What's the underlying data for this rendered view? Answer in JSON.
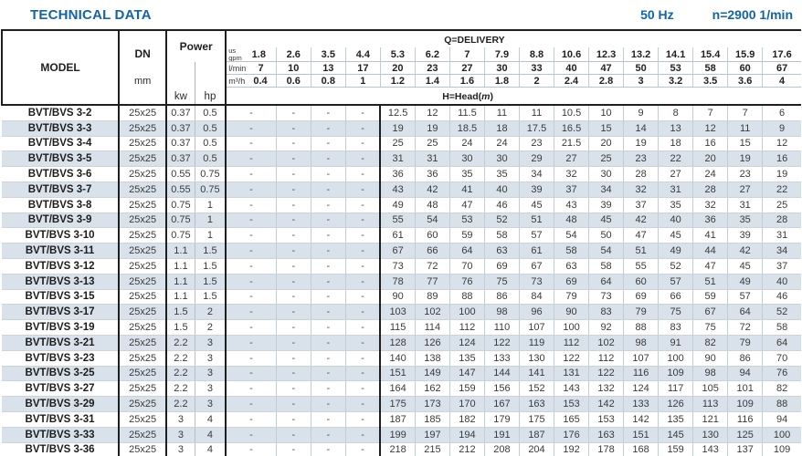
{
  "header": {
    "title": "TECHNICAL DATA",
    "frequency": "50 Hz",
    "speed": "n=2900 1/min"
  },
  "table": {
    "model_header": "MODEL",
    "dn_header": "DN",
    "dn_unit": "mm",
    "power_header": "Power",
    "power_units": [
      "kw",
      "hp"
    ],
    "delivery_header": "Q=DELIVERY",
    "head_label": {
      "prefix": "H=Head(",
      "symbol": "m",
      "suffix": ")"
    },
    "units": {
      "us": "us",
      "gpm": "gpm",
      "lmin": "l/min",
      "m3h": "m³/h"
    },
    "flow": {
      "gpm": [
        "1.8",
        "2.6",
        "3.5",
        "4.4",
        "5.3",
        "6.2",
        "7",
        "7.9",
        "8.8",
        "10.6",
        "12.3",
        "13.2",
        "14.1",
        "15.4",
        "15.9",
        "17.6"
      ],
      "lmin": [
        "7",
        "10",
        "13",
        "17",
        "20",
        "23",
        "27",
        "30",
        "33",
        "40",
        "47",
        "50",
        "53",
        "58",
        "60",
        "67"
      ],
      "m3h": [
        "0.4",
        "0.6",
        "0.8",
        "1",
        "1.2",
        "1.4",
        "1.6",
        "1.8",
        "2",
        "2.4",
        "2.8",
        "3",
        "3.2",
        "3.5",
        "3.6",
        "4"
      ]
    },
    "rows": [
      {
        "model": "BVT/BVS 3-2",
        "dn": "25x25",
        "kw": "0.37",
        "hp": "0.5",
        "heads": [
          "-",
          "-",
          "-",
          "-",
          "12.5",
          "12",
          "11.5",
          "11",
          "11",
          "10.5",
          "10",
          "9",
          "8",
          "7",
          "7",
          "6"
        ]
      },
      {
        "model": "BVT/BVS 3-3",
        "dn": "25x25",
        "kw": "0.37",
        "hp": "0.5",
        "heads": [
          "-",
          "-",
          "-",
          "-",
          "19",
          "19",
          "18.5",
          "18",
          "17.5",
          "16.5",
          "15",
          "14",
          "13",
          "12",
          "11",
          "9"
        ]
      },
      {
        "model": "BVT/BVS 3-4",
        "dn": "25x25",
        "kw": "0.37",
        "hp": "0.5",
        "heads": [
          "-",
          "-",
          "-",
          "-",
          "25",
          "25",
          "24",
          "24",
          "23",
          "21.5",
          "20",
          "19",
          "18",
          "16",
          "15",
          "12"
        ]
      },
      {
        "model": "BVT/BVS 3-5",
        "dn": "25x25",
        "kw": "0.37",
        "hp": "0.5",
        "heads": [
          "-",
          "-",
          "-",
          "-",
          "31",
          "31",
          "30",
          "30",
          "29",
          "27",
          "25",
          "23",
          "22",
          "20",
          "19",
          "16"
        ]
      },
      {
        "model": "BVT/BVS 3-6",
        "dn": "25x25",
        "kw": "0.55",
        "hp": "0.75",
        "heads": [
          "-",
          "-",
          "-",
          "-",
          "36",
          "36",
          "35",
          "35",
          "34",
          "32",
          "30",
          "28",
          "27",
          "24",
          "23",
          "19"
        ]
      },
      {
        "model": "BVT/BVS 3-7",
        "dn": "25x25",
        "kw": "0.55",
        "hp": "0.75",
        "heads": [
          "-",
          "-",
          "-",
          "-",
          "43",
          "42",
          "41",
          "40",
          "39",
          "37",
          "34",
          "32",
          "31",
          "28",
          "27",
          "22"
        ]
      },
      {
        "model": "BVT/BVS 3-8",
        "dn": "25x25",
        "kw": "0.75",
        "hp": "1",
        "heads": [
          "-",
          "-",
          "-",
          "-",
          "49",
          "48",
          "47",
          "46",
          "45",
          "43",
          "39",
          "37",
          "35",
          "32",
          "31",
          "25"
        ]
      },
      {
        "model": "BVT/BVS 3-9",
        "dn": "25x25",
        "kw": "0.75",
        "hp": "1",
        "heads": [
          "-",
          "-",
          "-",
          "-",
          "55",
          "54",
          "53",
          "52",
          "51",
          "48",
          "45",
          "42",
          "40",
          "36",
          "35",
          "28"
        ]
      },
      {
        "model": "BVT/BVS 3-10",
        "dn": "25x25",
        "kw": "0.75",
        "hp": "1",
        "heads": [
          "-",
          "-",
          "-",
          "-",
          "61",
          "60",
          "59",
          "58",
          "57",
          "54",
          "50",
          "47",
          "45",
          "41",
          "39",
          "31"
        ]
      },
      {
        "model": "BVT/BVS 3-11",
        "dn": "25x25",
        "kw": "1.1",
        "hp": "1.5",
        "heads": [
          "-",
          "-",
          "-",
          "-",
          "67",
          "66",
          "64",
          "63",
          "61",
          "58",
          "54",
          "51",
          "49",
          "44",
          "42",
          "34"
        ]
      },
      {
        "model": "BVT/BVS 3-12",
        "dn": "25x25",
        "kw": "1.1",
        "hp": "1.5",
        "heads": [
          "-",
          "-",
          "-",
          "-",
          "73",
          "72",
          "70",
          "69",
          "67",
          "63",
          "58",
          "55",
          "52",
          "47",
          "45",
          "37"
        ]
      },
      {
        "model": "BVT/BVS 3-13",
        "dn": "25x25",
        "kw": "1.1",
        "hp": "1.5",
        "heads": [
          "-",
          "-",
          "-",
          "-",
          "78",
          "77",
          "76",
          "75",
          "73",
          "69",
          "64",
          "60",
          "57",
          "51",
          "49",
          "40"
        ]
      },
      {
        "model": "BVT/BVS 3-15",
        "dn": "25x25",
        "kw": "1.1",
        "hp": "1.5",
        "heads": [
          "-",
          "-",
          "-",
          "-",
          "90",
          "89",
          "88",
          "86",
          "84",
          "79",
          "73",
          "69",
          "66",
          "59",
          "57",
          "46"
        ]
      },
      {
        "model": "BVT/BVS 3-17",
        "dn": "25x25",
        "kw": "1.5",
        "hp": "2",
        "heads": [
          "-",
          "-",
          "-",
          "-",
          "103",
          "102",
          "100",
          "98",
          "96",
          "90",
          "83",
          "79",
          "75",
          "67",
          "64",
          "52"
        ]
      },
      {
        "model": "BVT/BVS 3-19",
        "dn": "25x25",
        "kw": "1.5",
        "hp": "2",
        "heads": [
          "-",
          "-",
          "-",
          "-",
          "115",
          "114",
          "112",
          "110",
          "107",
          "100",
          "92",
          "88",
          "83",
          "75",
          "72",
          "58"
        ]
      },
      {
        "model": "BVT/BVS 3-21",
        "dn": "25x25",
        "kw": "2.2",
        "hp": "3",
        "heads": [
          "-",
          "-",
          "-",
          "-",
          "128",
          "126",
          "124",
          "122",
          "119",
          "112",
          "102",
          "98",
          "91",
          "82",
          "79",
          "64"
        ]
      },
      {
        "model": "BVT/BVS 3-23",
        "dn": "25x25",
        "kw": "2.2",
        "hp": "3",
        "heads": [
          "-",
          "-",
          "-",
          "-",
          "140",
          "138",
          "135",
          "133",
          "130",
          "122",
          "112",
          "107",
          "100",
          "90",
          "86",
          "70"
        ]
      },
      {
        "model": "BVT/BVS 3-25",
        "dn": "25x25",
        "kw": "2.2",
        "hp": "3",
        "heads": [
          "-",
          "-",
          "-",
          "-",
          "151",
          "149",
          "147",
          "144",
          "141",
          "131",
          "122",
          "116",
          "109",
          "98",
          "94",
          "76"
        ]
      },
      {
        "model": "BVT/BVS 3-27",
        "dn": "25x25",
        "kw": "2.2",
        "hp": "3",
        "heads": [
          "-",
          "-",
          "-",
          "-",
          "164",
          "162",
          "159",
          "156",
          "152",
          "143",
          "132",
          "124",
          "117",
          "105",
          "101",
          "82"
        ]
      },
      {
        "model": "BVT/BVS 3-29",
        "dn": "25x25",
        "kw": "2.2",
        "hp": "3",
        "heads": [
          "-",
          "-",
          "-",
          "-",
          "175",
          "173",
          "170",
          "167",
          "163",
          "153",
          "142",
          "133",
          "126",
          "113",
          "109",
          "88"
        ]
      },
      {
        "model": "BVT/BVS 3-31",
        "dn": "25x25",
        "kw": "3",
        "hp": "4",
        "heads": [
          "-",
          "-",
          "-",
          "-",
          "187",
          "185",
          "182",
          "179",
          "175",
          "165",
          "153",
          "142",
          "135",
          "121",
          "116",
          "94"
        ]
      },
      {
        "model": "BVT/BVS 3-33",
        "dn": "25x25",
        "kw": "3",
        "hp": "4",
        "heads": [
          "-",
          "-",
          "-",
          "-",
          "199",
          "197",
          "194",
          "191",
          "187",
          "176",
          "163",
          "151",
          "145",
          "130",
          "125",
          "100"
        ]
      },
      {
        "model": "BVT/BVS 3-36",
        "dn": "25x25",
        "kw": "3",
        "hp": "4",
        "heads": [
          "-",
          "-",
          "-",
          "-",
          "218",
          "215",
          "212",
          "208",
          "204",
          "192",
          "178",
          "168",
          "159",
          "143",
          "137",
          "109"
        ]
      }
    ]
  }
}
